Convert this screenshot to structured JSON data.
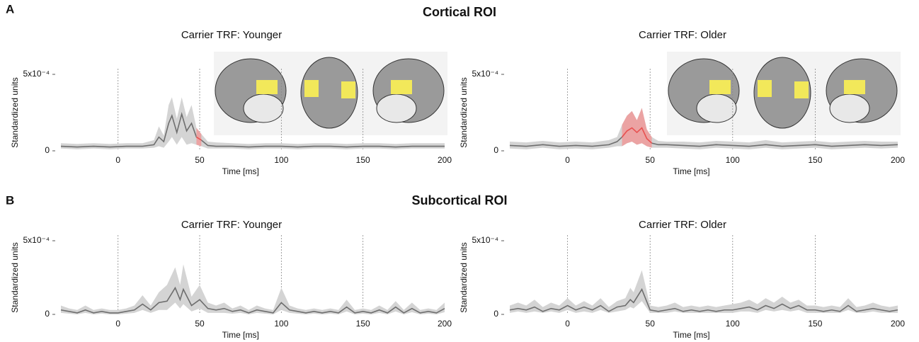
{
  "panels": [
    {
      "label": "A",
      "title": "Cortical ROI"
    },
    {
      "label": "B",
      "title": "Subcortical ROI"
    }
  ],
  "chart_data": [
    {
      "type": "line",
      "title": "Carrier TRF: Younger",
      "xlabel": "Time [ms]",
      "ylabel": "Standardized units",
      "xlim": [
        -35,
        200
      ],
      "xticks": [
        0,
        50,
        100,
        150,
        200
      ],
      "ylim": [
        0,
        0.0005
      ],
      "yticks": [
        0,
        {
          "value": 0.0005,
          "label": "5x10⁻⁴"
        }
      ],
      "xgrid": true,
      "x": [
        -35,
        -25,
        -15,
        -5,
        5,
        15,
        22,
        25,
        28,
        31,
        33,
        36,
        39,
        42,
        45,
        48,
        51,
        55,
        60,
        70,
        80,
        90,
        100,
        110,
        120,
        130,
        140,
        150,
        160,
        170,
        180,
        190,
        200
      ],
      "series": [
        {
          "color": "#6e6e6e",
          "band_color": "#d4d4d4",
          "values": [
            3e-05,
            2.5e-05,
            3e-05,
            2.5e-05,
            3e-05,
            3e-05,
            4e-05,
            9e-05,
            6e-05,
            0.00018,
            0.00023,
            0.00012,
            0.00024,
            0.00013,
            0.00018,
            9e-05,
            7e-05,
            3.5e-05,
            3e-05,
            3e-05,
            2.5e-05,
            3e-05,
            3e-05,
            2.5e-05,
            3e-05,
            3e-05,
            2.5e-05,
            3e-05,
            3e-05,
            2.5e-05,
            3e-05,
            3e-05,
            3e-05
          ],
          "lower": [
            1.5e-05,
            1e-05,
            1.5e-05,
            1e-05,
            1.5e-05,
            1.5e-05,
            2e-05,
            3e-05,
            2e-05,
            6e-05,
            9e-05,
            4e-05,
            9e-05,
            4e-05,
            5e-05,
            4e-05,
            3e-05,
            1.5e-05,
            1.5e-05,
            1.5e-05,
            1e-05,
            1.5e-05,
            1.5e-05,
            1e-05,
            1.5e-05,
            1.5e-05,
            1e-05,
            1.5e-05,
            1.5e-05,
            1e-05,
            1.5e-05,
            1.5e-05,
            1.5e-05
          ],
          "upper": [
            5e-05,
            4.5e-05,
            5e-05,
            4.5e-05,
            5e-05,
            5e-05,
            7e-05,
            0.00016,
            0.0001,
            0.0003,
            0.00035,
            0.00021,
            0.00035,
            0.00022,
            0.0003,
            0.00015,
            0.00011,
            6e-05,
            5.5e-05,
            5e-05,
            4.5e-05,
            5e-05,
            5e-05,
            4.5e-05,
            5e-05,
            5e-05,
            4.5e-05,
            5e-05,
            5e-05,
            4.5e-05,
            5e-05,
            5e-05,
            5e-05
          ]
        },
        {
          "color": "#e8504f",
          "band_color": "#eba3a3",
          "values": [
            null,
            null,
            null,
            null,
            null,
            null,
            null,
            null,
            null,
            null,
            null,
            null,
            null,
            null,
            null,
            9e-05,
            7e-05,
            null,
            null,
            null,
            null,
            null,
            null,
            null,
            null,
            null,
            null,
            null,
            null,
            null,
            null,
            null,
            null
          ],
          "lower": [
            null,
            null,
            null,
            null,
            null,
            null,
            null,
            null,
            null,
            null,
            null,
            null,
            null,
            null,
            null,
            4e-05,
            3e-05,
            null,
            null,
            null,
            null,
            null,
            null,
            null,
            null,
            null,
            null,
            null,
            null,
            null,
            null,
            null,
            null
          ],
          "upper": [
            null,
            null,
            null,
            null,
            null,
            null,
            null,
            null,
            null,
            null,
            null,
            null,
            null,
            null,
            null,
            0.00015,
            0.00011,
            null,
            null,
            null,
            null,
            null,
            null,
            null,
            null,
            null,
            null,
            null,
            null,
            null,
            null,
            null,
            null
          ]
        }
      ]
    },
    {
      "type": "line",
      "title": "Carrier TRF: Older",
      "xlabel": "Time [ms]",
      "ylabel": "Standardized units",
      "xlim": [
        -35,
        200
      ],
      "xticks": [
        0,
        50,
        100,
        150,
        200
      ],
      "ylim": [
        0,
        0.0005
      ],
      "yticks": [
        0,
        {
          "value": 0.0005,
          "label": "5x10⁻⁴"
        }
      ],
      "xgrid": true,
      "x": [
        -35,
        -25,
        -15,
        -5,
        5,
        15,
        25,
        30,
        33,
        36,
        39,
        42,
        45,
        48,
        51,
        55,
        60,
        70,
        80,
        90,
        100,
        110,
        120,
        130,
        140,
        150,
        160,
        170,
        180,
        190,
        200
      ],
      "series": [
        {
          "color": "#6e6e6e",
          "band_color": "#d4d4d4",
          "values": [
            3.5e-05,
            3e-05,
            4e-05,
            3e-05,
            3.5e-05,
            3e-05,
            4e-05,
            6e-05,
            9e-05,
            0.00013,
            0.00015,
            0.00012,
            0.00015,
            8e-05,
            5e-05,
            4e-05,
            4e-05,
            3.5e-05,
            3e-05,
            4e-05,
            3.5e-05,
            3e-05,
            4e-05,
            3e-05,
            3.5e-05,
            4e-05,
            3e-05,
            3.5e-05,
            4e-05,
            3.5e-05,
            4e-05
          ],
          "lower": [
            1.5e-05,
            1e-05,
            2e-05,
            1e-05,
            1.5e-05,
            1e-05,
            2e-05,
            3e-05,
            3e-05,
            5e-05,
            6e-05,
            4e-05,
            5e-05,
            3e-05,
            2e-05,
            2e-05,
            2e-05,
            1.5e-05,
            1e-05,
            2e-05,
            1.5e-05,
            1e-05,
            2e-05,
            1e-05,
            1.5e-05,
            2e-05,
            1e-05,
            1.5e-05,
            2e-05,
            1.5e-05,
            2e-05
          ],
          "upper": [
            6e-05,
            5.5e-05,
            6.5e-05,
            5.5e-05,
            6e-05,
            5.5e-05,
            7e-05,
            9e-05,
            0.00017,
            0.00023,
            0.00026,
            0.0002,
            0.00028,
            0.00014,
            9e-05,
            6.5e-05,
            6e-05,
            6e-05,
            5.5e-05,
            6.5e-05,
            6e-05,
            5.5e-05,
            7e-05,
            5.5e-05,
            6e-05,
            6.5e-05,
            5.5e-05,
            6e-05,
            6.5e-05,
            6e-05,
            6e-05
          ]
        },
        {
          "color": "#e8504f",
          "band_color": "#eba3a3",
          "values": [
            null,
            null,
            null,
            null,
            null,
            null,
            null,
            null,
            9e-05,
            0.00013,
            0.00015,
            0.00012,
            0.00015,
            8e-05,
            5e-05,
            null,
            null,
            null,
            null,
            null,
            null,
            null,
            null,
            null,
            null,
            null,
            null,
            null,
            null,
            null,
            null
          ],
          "lower": [
            null,
            null,
            null,
            null,
            null,
            null,
            null,
            null,
            3e-05,
            5e-05,
            6e-05,
            4e-05,
            5e-05,
            3e-05,
            2e-05,
            null,
            null,
            null,
            null,
            null,
            null,
            null,
            null,
            null,
            null,
            null,
            null,
            null,
            null,
            null,
            null
          ],
          "upper": [
            null,
            null,
            null,
            null,
            null,
            null,
            null,
            null,
            0.00017,
            0.00023,
            0.00026,
            0.0002,
            0.00028,
            0.00014,
            9e-05,
            null,
            null,
            null,
            null,
            null,
            null,
            null,
            null,
            null,
            null,
            null,
            null,
            null,
            null,
            null,
            null
          ]
        }
      ]
    },
    {
      "type": "line",
      "title": "Carrier TRF: Younger",
      "xlabel": "Time [ms]",
      "ylabel": "Standardized units",
      "xlim": [
        -35,
        200
      ],
      "xticks": [
        0,
        50,
        100,
        150,
        200
      ],
      "ylim": [
        0,
        0.0005
      ],
      "yticks": [
        0,
        {
          "value": 0.0005,
          "label": "5x10⁻⁴"
        }
      ],
      "xgrid": true,
      "x": [
        -35,
        -30,
        -25,
        -20,
        -15,
        -10,
        -5,
        0,
        5,
        10,
        15,
        20,
        25,
        30,
        35,
        38,
        40,
        45,
        50,
        55,
        60,
        65,
        70,
        75,
        80,
        85,
        90,
        95,
        100,
        105,
        110,
        115,
        120,
        125,
        130,
        135,
        140,
        145,
        150,
        155,
        160,
        165,
        170,
        175,
        180,
        185,
        190,
        195,
        200
      ],
      "series": [
        {
          "color": "#6e6e6e",
          "band_color": "#d4d4d4",
          "values": [
            3e-05,
            2e-05,
            1e-05,
            3e-05,
            1e-05,
            2e-05,
            1e-05,
            1e-05,
            2e-05,
            3e-05,
            7e-05,
            3e-05,
            8e-05,
            9e-05,
            0.00018,
            0.0001,
            0.00017,
            6e-05,
            0.0001,
            4e-05,
            3e-05,
            4e-05,
            2e-05,
            3e-05,
            1e-05,
            3e-05,
            2e-05,
            1e-05,
            8e-05,
            3e-05,
            2e-05,
            1e-05,
            2e-05,
            1e-05,
            2e-05,
            1e-05,
            5e-05,
            1e-05,
            2e-05,
            1e-05,
            3e-05,
            1e-05,
            5e-05,
            1e-05,
            4e-05,
            1e-05,
            2e-05,
            1e-05,
            4e-05
          ],
          "lower": [
            1e-05,
            5e-06,
            0,
            1e-05,
            0,
            5e-06,
            0,
            0,
            5e-06,
            1e-05,
            3e-05,
            1e-05,
            3e-05,
            3e-05,
            8e-05,
            4e-05,
            7e-05,
            2e-05,
            4e-05,
            1e-05,
            1e-05,
            1e-05,
            5e-06,
            1e-05,
            0,
            1e-05,
            5e-06,
            0,
            3e-05,
            1e-05,
            5e-06,
            0,
            5e-06,
            0,
            5e-06,
            0,
            2e-05,
            0,
            5e-06,
            0,
            1e-05,
            0,
            2e-05,
            0,
            1.5e-05,
            0,
            5e-06,
            0,
            1.5e-05
          ],
          "upper": [
            6e-05,
            4e-05,
            3e-05,
            6e-05,
            3e-05,
            4e-05,
            3e-05,
            3e-05,
            4e-05,
            6e-05,
            0.00013,
            6e-05,
            0.00015,
            0.0002,
            0.00032,
            0.0002,
            0.00034,
            0.00012,
            0.0002,
            8e-05,
            6e-05,
            8e-05,
            4e-05,
            6e-05,
            3e-05,
            6e-05,
            4e-05,
            3e-05,
            0.00018,
            6e-05,
            4e-05,
            3e-05,
            4e-05,
            3e-05,
            4e-05,
            3e-05,
            0.0001,
            3e-05,
            4e-05,
            3e-05,
            6e-05,
            3e-05,
            9e-05,
            3e-05,
            8e-05,
            3e-05,
            4e-05,
            3e-05,
            8e-05
          ]
        }
      ]
    },
    {
      "type": "line",
      "title": "Carrier TRF: Older",
      "xlabel": "Time [ms]",
      "ylabel": "Standardized units",
      "xlim": [
        -35,
        200
      ],
      "xticks": [
        0,
        50,
        100,
        150,
        200
      ],
      "ylim": [
        0,
        0.0005
      ],
      "yticks": [
        0,
        {
          "value": 0.0005,
          "label": "5x10⁻⁴"
        }
      ],
      "xgrid": true,
      "x": [
        -35,
        -30,
        -25,
        -20,
        -15,
        -10,
        -5,
        0,
        5,
        10,
        15,
        20,
        25,
        30,
        35,
        38,
        40,
        45,
        50,
        55,
        60,
        65,
        70,
        75,
        80,
        85,
        90,
        95,
        100,
        105,
        110,
        115,
        120,
        125,
        130,
        135,
        140,
        145,
        150,
        155,
        160,
        165,
        170,
        175,
        180,
        185,
        190,
        195,
        200
      ],
      "series": [
        {
          "color": "#6e6e6e",
          "band_color": "#d4d4d4",
          "values": [
            3e-05,
            4e-05,
            3e-05,
            5e-05,
            2e-05,
            4e-05,
            3e-05,
            6e-05,
            3e-05,
            5e-05,
            3e-05,
            6e-05,
            2e-05,
            5e-05,
            6e-05,
            0.0001,
            8e-05,
            0.00017,
            3e-05,
            2e-05,
            3e-05,
            4e-05,
            2e-05,
            3e-05,
            2e-05,
            3e-05,
            2e-05,
            3e-05,
            3e-05,
            4e-05,
            5e-05,
            3e-05,
            6e-05,
            4e-05,
            7e-05,
            4e-05,
            6e-05,
            3e-05,
            3e-05,
            2e-05,
            3e-05,
            2e-05,
            6e-05,
            2e-05,
            3e-05,
            4e-05,
            3e-05,
            2e-05,
            3e-05
          ],
          "lower": [
            1e-05,
            2e-05,
            1e-05,
            2e-05,
            1e-05,
            2e-05,
            1e-05,
            3e-05,
            1e-05,
            2e-05,
            1e-05,
            3e-05,
            1e-05,
            2e-05,
            3e-05,
            5e-05,
            4e-05,
            9e-05,
            1e-05,
            1e-05,
            1e-05,
            2e-05,
            1e-05,
            1e-05,
            1e-05,
            1e-05,
            1e-05,
            1e-05,
            1e-05,
            2e-05,
            2e-05,
            1e-05,
            3e-05,
            2e-05,
            3e-05,
            2e-05,
            3e-05,
            1e-05,
            1e-05,
            1e-05,
            1e-05,
            1e-05,
            3e-05,
            1e-05,
            1e-05,
            2e-05,
            1e-05,
            1e-05,
            1e-05
          ],
          "upper": [
            6e-05,
            8e-05,
            6e-05,
            0.0001,
            5e-05,
            8e-05,
            6e-05,
            0.00011,
            6e-05,
            9e-05,
            6e-05,
            0.00011,
            5e-05,
            9e-05,
            0.00011,
            0.00018,
            0.00015,
            0.0003,
            6e-05,
            5e-05,
            6e-05,
            8e-05,
            5e-05,
            6e-05,
            5e-05,
            6e-05,
            5e-05,
            6e-05,
            7e-05,
            8e-05,
            0.0001,
            7e-05,
            0.00011,
            8e-05,
            0.00012,
            8e-05,
            0.0001,
            6e-05,
            6e-05,
            5e-05,
            6e-05,
            5e-05,
            0.00011,
            5e-05,
            6e-05,
            8e-05,
            6e-05,
            5e-05,
            6e-05
          ]
        }
      ]
    }
  ]
}
